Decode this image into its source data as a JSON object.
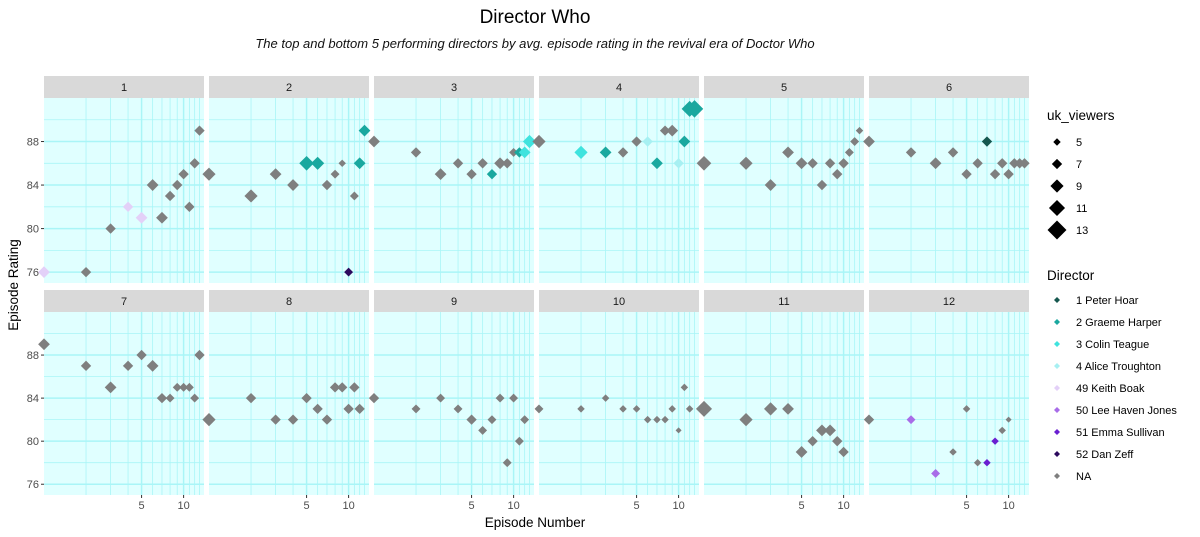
{
  "title": "Director Who",
  "subtitle": "The top and bottom 5 performing directors by avg. episode rating in the revival era of Doctor Who",
  "x_axis_label": "Episode Number",
  "y_axis_label": "Episode Rating",
  "colors": {
    "panel_background": "#e0ffff",
    "grid_line": "#a9f5f7",
    "strip_background": "#d9d9d9",
    "na_points": "#7f7f7f"
  },
  "legend": {
    "size_title": "uk_viewers",
    "size_entries": [
      "5",
      "7",
      "9",
      "11",
      "13"
    ],
    "color_title": "Director",
    "color_entries": [
      {
        "label": "1 Peter Hoar",
        "color": "#15574f"
      },
      {
        "label": "2 Graeme Harper",
        "color": "#1aa89f"
      },
      {
        "label": "3 Colin Teague",
        "color": "#3fe3de"
      },
      {
        "label": "4 Alice Troughton",
        "color": "#a7f0f2"
      },
      {
        "label": "49 Keith Boak",
        "color": "#e3d0f8"
      },
      {
        "label": "50 Lee Haven Jones",
        "color": "#a86ce8"
      },
      {
        "label": "51 Emma Sullivan",
        "color": "#6a1fd1"
      },
      {
        "label": "52 Dan Zeff",
        "color": "#2c0a5e"
      },
      {
        "label": "NA",
        "color": "#7f7f7f"
      }
    ]
  },
  "chart_data": {
    "type": "scatter",
    "title": "Director Who",
    "subtitle": "The top and bottom 5 performing directors by avg. episode rating in the revival era of Doctor Who",
    "xlabel": "Episode Number",
    "ylabel": "Episode Rating",
    "facet_by": "series",
    "x_scale": "log10",
    "xlim": [
      1,
      14
    ],
    "ylim": [
      75,
      92
    ],
    "x_ticks": [
      5,
      10
    ],
    "y_ticks": [
      76,
      80,
      84,
      88
    ],
    "facets": [
      {
        "label": "1",
        "points": [
          {
            "x": 1,
            "y": 76,
            "v": 8,
            "d": "49 Keith Boak"
          },
          {
            "x": 2,
            "y": 76,
            "v": 7,
            "d": "NA"
          },
          {
            "x": 3,
            "y": 80,
            "v": 7,
            "d": "NA"
          },
          {
            "x": 4,
            "y": 82,
            "v": 7,
            "d": "49 Keith Boak"
          },
          {
            "x": 5,
            "y": 81,
            "v": 8,
            "d": "49 Keith Boak"
          },
          {
            "x": 6,
            "y": 84,
            "v": 8,
            "d": "NA"
          },
          {
            "x": 7,
            "y": 81,
            "v": 8,
            "d": "NA"
          },
          {
            "x": 8,
            "y": 83,
            "v": 7,
            "d": "NA"
          },
          {
            "x": 9,
            "y": 84,
            "v": 7,
            "d": "NA"
          },
          {
            "x": 10,
            "y": 85,
            "v": 7,
            "d": "NA"
          },
          {
            "x": 11,
            "y": 82,
            "v": 7,
            "d": "NA"
          },
          {
            "x": 12,
            "y": 86,
            "v": 7,
            "d": "NA"
          },
          {
            "x": 13,
            "y": 89,
            "v": 7,
            "d": "NA"
          }
        ]
      },
      {
        "label": "2",
        "points": [
          {
            "x": 1,
            "y": 85,
            "v": 9,
            "d": "NA"
          },
          {
            "x": 2,
            "y": 83,
            "v": 9,
            "d": "NA"
          },
          {
            "x": 3,
            "y": 85,
            "v": 8,
            "d": "NA"
          },
          {
            "x": 4,
            "y": 84,
            "v": 8,
            "d": "NA"
          },
          {
            "x": 5,
            "y": 86,
            "v": 10,
            "d": "2 Graeme Harper"
          },
          {
            "x": 6,
            "y": 86,
            "v": 9,
            "d": "2 Graeme Harper"
          },
          {
            "x": 7,
            "y": 84,
            "v": 7,
            "d": "NA"
          },
          {
            "x": 8,
            "y": 85,
            "v": 6,
            "d": "NA"
          },
          {
            "x": 9,
            "y": 86,
            "v": 5,
            "d": "NA"
          },
          {
            "x": 10,
            "y": 76,
            "v": 6,
            "d": "52 Dan Zeff"
          },
          {
            "x": 11,
            "y": 83,
            "v": 6,
            "d": "NA"
          },
          {
            "x": 12,
            "y": 86,
            "v": 8,
            "d": "2 Graeme Harper"
          },
          {
            "x": 13,
            "y": 89,
            "v": 8,
            "d": "2 Graeme Harper"
          }
        ]
      },
      {
        "label": "3",
        "points": [
          {
            "x": 1,
            "y": 88,
            "v": 8,
            "d": "NA"
          },
          {
            "x": 2,
            "y": 87,
            "v": 7,
            "d": "NA"
          },
          {
            "x": 3,
            "y": 85,
            "v": 8,
            "d": "NA"
          },
          {
            "x": 4,
            "y": 86,
            "v": 7,
            "d": "NA"
          },
          {
            "x": 5,
            "y": 85,
            "v": 7,
            "d": "NA"
          },
          {
            "x": 6,
            "y": 86,
            "v": 7,
            "d": "NA"
          },
          {
            "x": 7,
            "y": 85,
            "v": 7,
            "d": "2 Graeme Harper"
          },
          {
            "x": 8,
            "y": 86,
            "v": 8,
            "d": "NA"
          },
          {
            "x": 9,
            "y": 86,
            "v": 7,
            "d": "NA"
          },
          {
            "x": 10,
            "y": 87,
            "v": 6,
            "d": "NA"
          },
          {
            "x": 11,
            "y": 87,
            "v": 7,
            "d": "2 Graeme Harper"
          },
          {
            "x": 12,
            "y": 87,
            "v": 8,
            "d": "3 Colin Teague"
          },
          {
            "x": 13,
            "y": 88,
            "v": 9,
            "d": "3 Colin Teague"
          }
        ]
      },
      {
        "label": "4",
        "points": [
          {
            "x": 1,
            "y": 88,
            "v": 9,
            "d": "NA"
          },
          {
            "x": 2,
            "y": 87,
            "v": 9,
            "d": "3 Colin Teague"
          },
          {
            "x": 3,
            "y": 87,
            "v": 8,
            "d": "2 Graeme Harper"
          },
          {
            "x": 4,
            "y": 87,
            "v": 7,
            "d": "NA"
          },
          {
            "x": 5,
            "y": 88,
            "v": 7,
            "d": "NA"
          },
          {
            "x": 6,
            "y": 88,
            "v": 7,
            "d": "4 Alice Troughton"
          },
          {
            "x": 7,
            "y": 86,
            "v": 8,
            "d": "2 Graeme Harper"
          },
          {
            "x": 8,
            "y": 89,
            "v": 7,
            "d": "NA"
          },
          {
            "x": 9,
            "y": 89,
            "v": 8,
            "d": "NA"
          },
          {
            "x": 10,
            "y": 86,
            "v": 7,
            "d": "4 Alice Troughton"
          },
          {
            "x": 11,
            "y": 88,
            "v": 8,
            "d": "2 Graeme Harper"
          },
          {
            "x": 12,
            "y": 91,
            "v": 11,
            "d": "2 Graeme Harper"
          },
          {
            "x": 13,
            "y": 91,
            "v": 12,
            "d": "2 Graeme Harper"
          }
        ]
      },
      {
        "label": "5",
        "points": [
          {
            "x": 1,
            "y": 86,
            "v": 10,
            "d": "NA"
          },
          {
            "x": 2,
            "y": 86,
            "v": 9,
            "d": "NA"
          },
          {
            "x": 3,
            "y": 84,
            "v": 8,
            "d": "NA"
          },
          {
            "x": 4,
            "y": 87,
            "v": 8,
            "d": "NA"
          },
          {
            "x": 5,
            "y": 86,
            "v": 8,
            "d": "NA"
          },
          {
            "x": 6,
            "y": 86,
            "v": 7,
            "d": "NA"
          },
          {
            "x": 7,
            "y": 84,
            "v": 7,
            "d": "NA"
          },
          {
            "x": 8,
            "y": 86,
            "v": 7,
            "d": "NA"
          },
          {
            "x": 9,
            "y": 85,
            "v": 7,
            "d": "NA"
          },
          {
            "x": 10,
            "y": 86,
            "v": 7,
            "d": "NA"
          },
          {
            "x": 11,
            "y": 87,
            "v": 6,
            "d": "NA"
          },
          {
            "x": 12,
            "y": 88,
            "v": 6,
            "d": "NA"
          },
          {
            "x": 13,
            "y": 89,
            "v": 5,
            "d": "NA"
          }
        ]
      },
      {
        "label": "6",
        "points": [
          {
            "x": 1,
            "y": 88,
            "v": 8,
            "d": "NA"
          },
          {
            "x": 2,
            "y": 87,
            "v": 7,
            "d": "NA"
          },
          {
            "x": 3,
            "y": 86,
            "v": 8,
            "d": "NA"
          },
          {
            "x": 4,
            "y": 87,
            "v": 7,
            "d": "NA"
          },
          {
            "x": 5,
            "y": 85,
            "v": 7,
            "d": "NA"
          },
          {
            "x": 6,
            "y": 86,
            "v": 7,
            "d": "NA"
          },
          {
            "x": 7,
            "y": 88,
            "v": 7,
            "d": "1 Peter Hoar"
          },
          {
            "x": 8,
            "y": 85,
            "v": 7,
            "d": "NA"
          },
          {
            "x": 9,
            "y": 86,
            "v": 7,
            "d": "NA"
          },
          {
            "x": 10,
            "y": 85,
            "v": 7,
            "d": "NA"
          },
          {
            "x": 11,
            "y": 86,
            "v": 7,
            "d": "NA"
          },
          {
            "x": 12,
            "y": 86,
            "v": 7,
            "d": "NA"
          },
          {
            "x": 13,
            "y": 86,
            "v": 7,
            "d": "NA"
          }
        ]
      },
      {
        "label": "7",
        "points": [
          {
            "x": 1,
            "y": 89,
            "v": 8,
            "d": "NA"
          },
          {
            "x": 2,
            "y": 87,
            "v": 7,
            "d": "NA"
          },
          {
            "x": 3,
            "y": 85,
            "v": 8,
            "d": "NA"
          },
          {
            "x": 4,
            "y": 87,
            "v": 7,
            "d": "NA"
          },
          {
            "x": 5,
            "y": 88,
            "v": 7,
            "d": "NA"
          },
          {
            "x": 6,
            "y": 87,
            "v": 8,
            "d": "NA"
          },
          {
            "x": 7,
            "y": 84,
            "v": 7,
            "d": "NA"
          },
          {
            "x": 8,
            "y": 84,
            "v": 6,
            "d": "NA"
          },
          {
            "x": 9,
            "y": 85,
            "v": 6,
            "d": "NA"
          },
          {
            "x": 10,
            "y": 85,
            "v": 6,
            "d": "NA"
          },
          {
            "x": 11,
            "y": 85,
            "v": 6,
            "d": "NA"
          },
          {
            "x": 12,
            "y": 84,
            "v": 6,
            "d": "NA"
          },
          {
            "x": 13,
            "y": 88,
            "v": 7,
            "d": "NA"
          }
        ]
      },
      {
        "label": "8",
        "points": [
          {
            "x": 1,
            "y": 82,
            "v": 9,
            "d": "NA"
          },
          {
            "x": 2,
            "y": 84,
            "v": 7,
            "d": "NA"
          },
          {
            "x": 3,
            "y": 82,
            "v": 7,
            "d": "NA"
          },
          {
            "x": 4,
            "y": 82,
            "v": 7,
            "d": "NA"
          },
          {
            "x": 5,
            "y": 84,
            "v": 7,
            "d": "NA"
          },
          {
            "x": 6,
            "y": 83,
            "v": 7,
            "d": "NA"
          },
          {
            "x": 7,
            "y": 82,
            "v": 7,
            "d": "NA"
          },
          {
            "x": 8,
            "y": 85,
            "v": 7,
            "d": "NA"
          },
          {
            "x": 9,
            "y": 85,
            "v": 7,
            "d": "NA"
          },
          {
            "x": 10,
            "y": 83,
            "v": 7,
            "d": "NA"
          },
          {
            "x": 11,
            "y": 85,
            "v": 7,
            "d": "NA"
          },
          {
            "x": 12,
            "y": 83,
            "v": 7,
            "d": "NA"
          }
        ]
      },
      {
        "label": "9",
        "points": [
          {
            "x": 1,
            "y": 84,
            "v": 7,
            "d": "NA"
          },
          {
            "x": 2,
            "y": 83,
            "v": 6,
            "d": "NA"
          },
          {
            "x": 3,
            "y": 84,
            "v": 6,
            "d": "NA"
          },
          {
            "x": 4,
            "y": 83,
            "v": 6,
            "d": "NA"
          },
          {
            "x": 5,
            "y": 82,
            "v": 7,
            "d": "NA"
          },
          {
            "x": 6,
            "y": 81,
            "v": 6,
            "d": "NA"
          },
          {
            "x": 7,
            "y": 82,
            "v": 6,
            "d": "NA"
          },
          {
            "x": 8,
            "y": 84,
            "v": 6,
            "d": "NA"
          },
          {
            "x": 9,
            "y": 78,
            "v": 6,
            "d": "NA"
          },
          {
            "x": 10,
            "y": 84,
            "v": 6,
            "d": "NA"
          },
          {
            "x": 11,
            "y": 80,
            "v": 6,
            "d": "NA"
          },
          {
            "x": 12,
            "y": 82,
            "v": 6,
            "d": "NA"
          }
        ]
      },
      {
        "label": "10",
        "points": [
          {
            "x": 1,
            "y": 83,
            "v": 6,
            "d": "NA"
          },
          {
            "x": 2,
            "y": 83,
            "v": 5,
            "d": "NA"
          },
          {
            "x": 3,
            "y": 84,
            "v": 5,
            "d": "NA"
          },
          {
            "x": 4,
            "y": 83,
            "v": 5,
            "d": "NA"
          },
          {
            "x": 5,
            "y": 83,
            "v": 5,
            "d": "NA"
          },
          {
            "x": 6,
            "y": 82,
            "v": 5,
            "d": "NA"
          },
          {
            "x": 7,
            "y": 82,
            "v": 5,
            "d": "NA"
          },
          {
            "x": 8,
            "y": 82,
            "v": 5,
            "d": "NA"
          },
          {
            "x": 9,
            "y": 83,
            "v": 5,
            "d": "NA"
          },
          {
            "x": 10,
            "y": 81,
            "v": 4,
            "d": "NA"
          },
          {
            "x": 11,
            "y": 85,
            "v": 5,
            "d": "NA"
          },
          {
            "x": 12,
            "y": 83,
            "v": 5,
            "d": "NA"
          }
        ]
      },
      {
        "label": "11",
        "points": [
          {
            "x": 1,
            "y": 83,
            "v": 11,
            "d": "NA"
          },
          {
            "x": 2,
            "y": 82,
            "v": 9,
            "d": "NA"
          },
          {
            "x": 3,
            "y": 83,
            "v": 9,
            "d": "NA"
          },
          {
            "x": 4,
            "y": 83,
            "v": 8,
            "d": "NA"
          },
          {
            "x": 5,
            "y": 79,
            "v": 8,
            "d": "NA"
          },
          {
            "x": 6,
            "y": 80,
            "v": 7,
            "d": "NA"
          },
          {
            "x": 7,
            "y": 81,
            "v": 8,
            "d": "NA"
          },
          {
            "x": 8,
            "y": 81,
            "v": 8,
            "d": "NA"
          },
          {
            "x": 9,
            "y": 80,
            "v": 7,
            "d": "NA"
          },
          {
            "x": 10,
            "y": 79,
            "v": 7,
            "d": "NA"
          }
        ]
      },
      {
        "label": "12",
        "points": [
          {
            "x": 1,
            "y": 82,
            "v": 7,
            "d": "NA"
          },
          {
            "x": 2,
            "y": 82,
            "v": 6,
            "d": "50 Lee Haven Jones"
          },
          {
            "x": 3,
            "y": 77,
            "v": 6,
            "d": "50 Lee Haven Jones"
          },
          {
            "x": 4,
            "y": 79,
            "v": 5,
            "d": "NA"
          },
          {
            "x": 5,
            "y": 83,
            "v": 5,
            "d": "NA"
          },
          {
            "x": 6,
            "y": 78,
            "v": 5,
            "d": "NA"
          },
          {
            "x": 7,
            "y": 78,
            "v": 5,
            "d": "51 Emma Sullivan"
          },
          {
            "x": 8,
            "y": 80,
            "v": 5,
            "d": "51 Emma Sullivan"
          },
          {
            "x": 9,
            "y": 81,
            "v": 5,
            "d": "NA"
          },
          {
            "x": 10,
            "y": 82,
            "v": 4,
            "d": "NA"
          }
        ]
      }
    ]
  }
}
